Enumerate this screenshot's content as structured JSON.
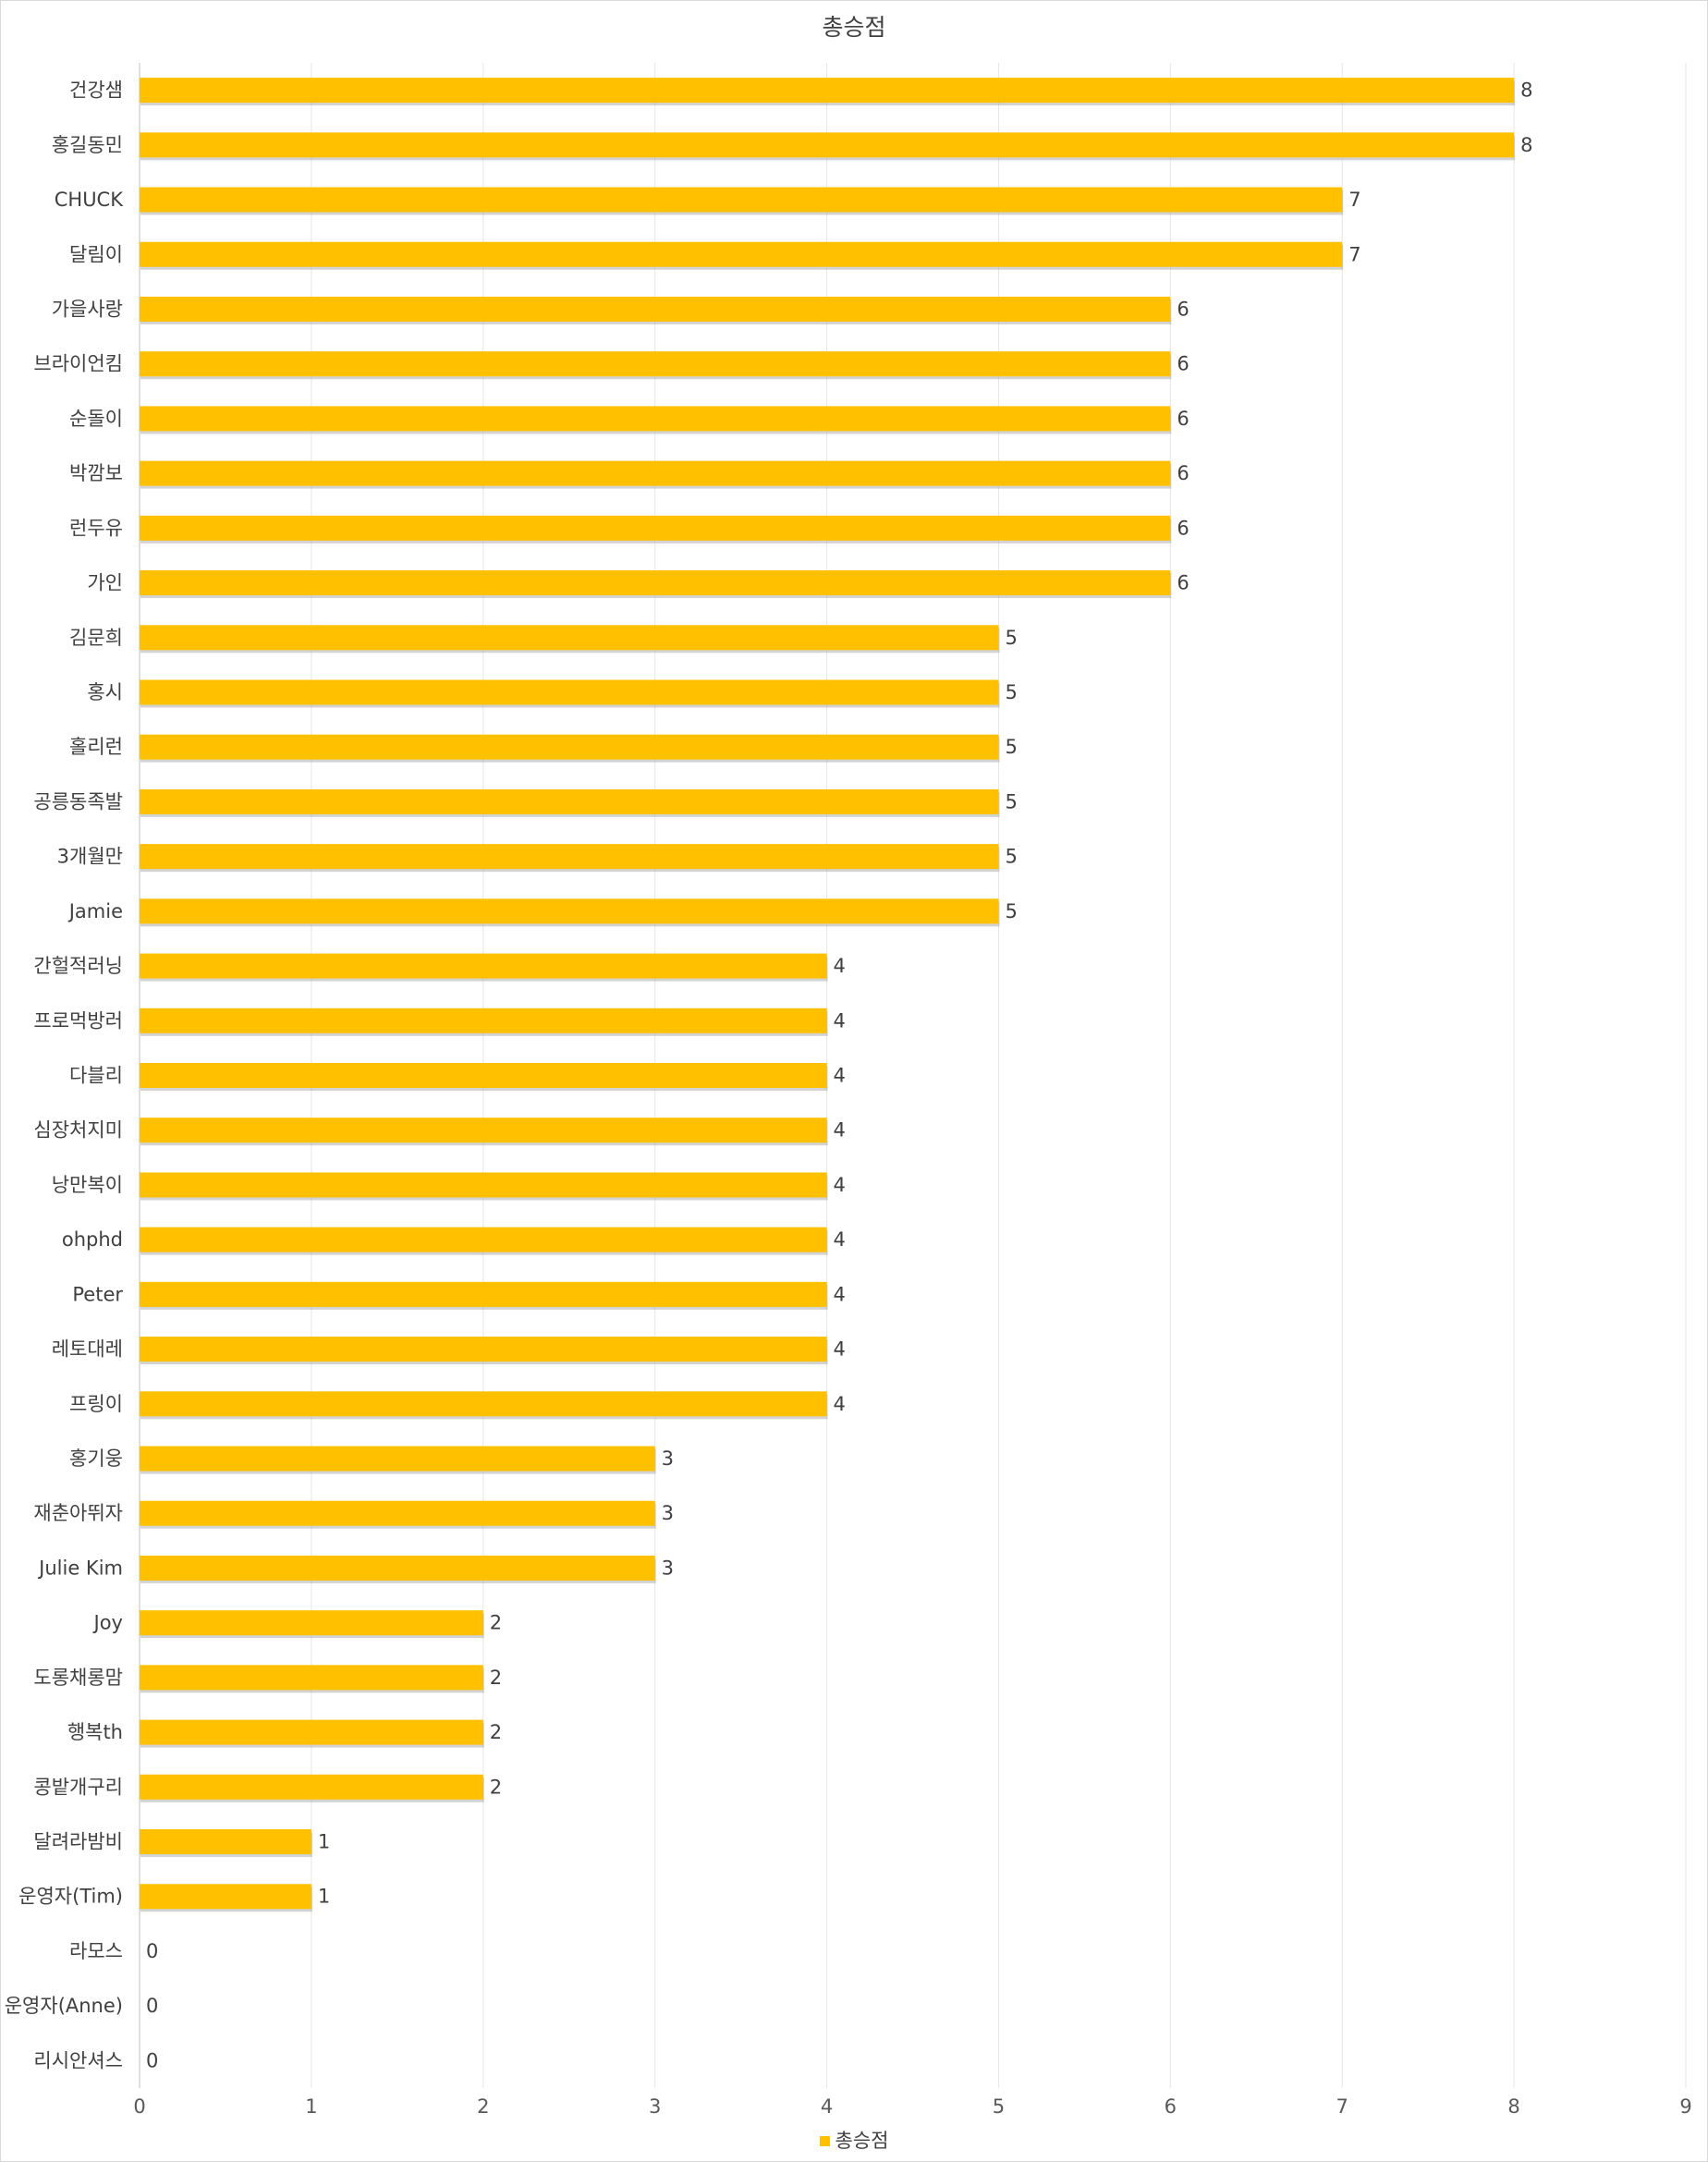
{
  "chart_data": {
    "type": "bar",
    "orientation": "horizontal",
    "title": "총승점",
    "categories": [
      "건강샘",
      "홍길동민",
      "CHUCK",
      "달림이",
      "가을사랑",
      "브라이언킴",
      "순돌이",
      "박깜보",
      "런두유",
      "가인",
      "김문희",
      "홍시",
      "홀리런",
      "공릉동족발",
      "3개월만",
      "Jamie",
      "간헐적러닝",
      "프로먹방러",
      "다블리",
      "심장처지미",
      "낭만복이",
      "ohphd",
      "Peter",
      "레토대레",
      "프링이",
      "홍기웅",
      "재춘아뛰자",
      "Julie Kim",
      "Joy",
      "도롱채롱맘",
      "행복th",
      "콩밭개구리",
      "달려라밤비",
      "운영자(Tim)",
      "라모스",
      "운영자(Anne)",
      "리시안셔스"
    ],
    "series": [
      {
        "name": "총승점",
        "color": "#FFC000",
        "values": [
          8,
          8,
          7,
          7,
          6,
          6,
          6,
          6,
          6,
          6,
          5,
          5,
          5,
          5,
          5,
          5,
          4,
          4,
          4,
          4,
          4,
          4,
          4,
          4,
          4,
          3,
          3,
          3,
          2,
          2,
          2,
          2,
          1,
          1,
          0,
          0,
          0
        ]
      }
    ],
    "x_ticks": [
      "0",
      "1",
      "2",
      "3",
      "4",
      "5",
      "6",
      "7",
      "8",
      "9"
    ],
    "xlim": [
      0,
      9
    ],
    "data_labels": true,
    "gridlines": "vertical",
    "legend_position": "bottom"
  }
}
